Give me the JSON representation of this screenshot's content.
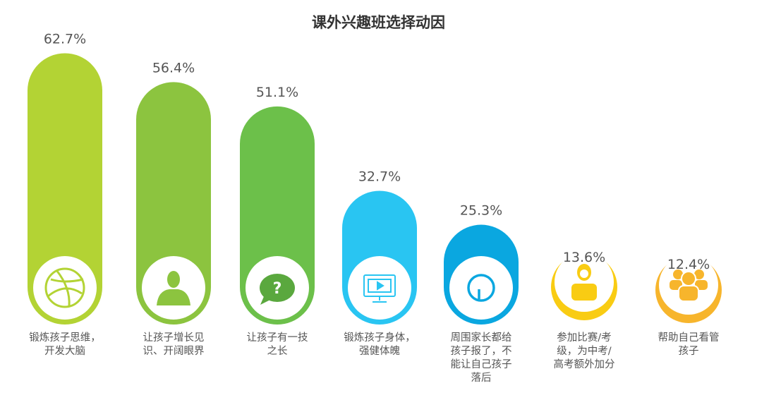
{
  "chart_data": {
    "type": "bar",
    "title": "课外兴趣班选择动因",
    "xlabel": "",
    "ylabel": "",
    "ylim": [
      0,
      70
    ],
    "categories": [
      "锻炼孩子思维，\n开发大脑",
      "让孩子增长见\n识、开阔眼界",
      "让孩子有一技\n之长",
      "锻炼孩子身体，\n强健体魄",
      "周围家长都给\n孩子报了，不\n能让自己孩子\n落后",
      "参加比赛/考\n级，为中考/\n高考额外加分",
      "帮助自己看管\n孩子"
    ],
    "values": [
      62.7,
      56.4,
      51.1,
      32.7,
      25.3,
      13.6,
      12.4
    ],
    "value_labels": [
      "62.7%",
      "56.4%",
      "51.1%",
      "32.7%",
      "25.3%",
      "13.6%",
      "12.4%"
    ],
    "colors": [
      "#b3d334",
      "#8cc43f",
      "#6cc04a",
      "#29c5f2",
      "#0aa7e0",
      "#f9cc13",
      "#f7b52c"
    ],
    "icons": [
      "basketball-icon",
      "person-icon",
      "question-bubble-icon",
      "monitor-play-icon",
      "power-icon",
      "student-icon",
      "group-icon"
    ],
    "grid": false,
    "legend": "none"
  }
}
